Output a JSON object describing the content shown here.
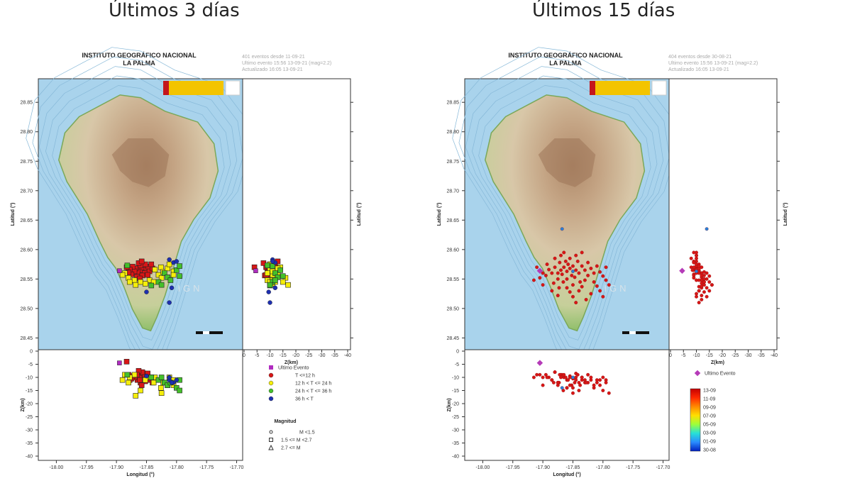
{
  "headings": [
    "Últimos 3 días",
    "Últimos 15 días"
  ],
  "colors": {
    "sea": "#a9d3ec",
    "land": "#c9c2a4",
    "red": "#d81616",
    "yellow": "#f5ee0a",
    "green": "#44c02a",
    "blue": "#1d2fb0",
    "magenta": "#b02cc0",
    "purple_diamond": "#b53ab8"
  },
  "panels": [
    {
      "institute": "INSTITUTO GEOGRÁFICO NACIONAL",
      "region": "LA PALMA",
      "info": [
        "401 eventos desde 11-09-21",
        "Ultimo evento 15:56 13-09-21 (mag=2.2)",
        "Actualizado 16:05 13-09-21"
      ],
      "watermark": "IGN"
    },
    {
      "institute": "INSTITUTO GEOGRÁFICO NACIONAL",
      "region": "LA PALMA",
      "info": [
        "404 eventos desde 30-08-21",
        "Ultimo evento 15:56 13-09-21 (mag=2.2)",
        "Actualizado 16:05 13-09-21"
      ],
      "watermark": "IGN"
    }
  ],
  "chart_data": [
    {
      "type": "scatter",
      "title": "Últimos 3 días",
      "map": {
        "xlabel": "Longitud (°)",
        "ylabel": "Latitud (°)",
        "xlim": [
          -18.03,
          -17.69
        ],
        "ylim": [
          28.43,
          28.89
        ],
        "xticks": [
          "-18.00",
          "-17.95",
          "-17.90",
          "-17.85",
          "-17.80",
          "-17.75",
          "-17.70"
        ],
        "yticks": [
          "28.85",
          "28.80",
          "28.75",
          "28.70",
          "28.65",
          "28.60",
          "28.55",
          "28.50",
          "28.45"
        ]
      },
      "depth_lat": {
        "xlabel": "Z(km)",
        "ylabel": "Latitud (°)",
        "xticks": [
          "0",
          "-5",
          "-10",
          "-15",
          "-20",
          "-25",
          "-30",
          "-35",
          "-40"
        ]
      },
      "lon_depth": {
        "ylabel": "Z(km)",
        "yticks": [
          "0",
          "-5",
          "-10",
          "-15",
          "-20",
          "-25",
          "-30",
          "-35",
          "-40"
        ]
      },
      "legend": {
        "items": [
          "Ultimo Evento",
          "T <=12 h",
          "12 h  < T <= 24 h",
          "24 h  < T <= 36 h",
          "36 h  < T"
        ],
        "magnitude_title": "Magnitud",
        "magnitude_items": [
          "M <1.5",
          "1.5 <= M <2.7",
          "2.7 <= M"
        ]
      },
      "series": [
        {
          "name": "T <=12 h",
          "color": "#d81616",
          "points": [
            [
              -17.862,
              28.568,
              -9.5
            ],
            [
              -17.858,
              28.565,
              -10
            ],
            [
              -17.855,
              28.57,
              -8.5
            ],
            [
              -17.865,
              28.562,
              -11
            ],
            [
              -17.85,
              28.566,
              -10.5
            ],
            [
              -17.868,
              28.568,
              -9
            ],
            [
              -17.86,
              28.573,
              -12
            ],
            [
              -17.853,
              28.56,
              -9
            ],
            [
              -17.87,
              28.563,
              -10
            ],
            [
              -17.847,
              28.571,
              -11
            ],
            [
              -17.857,
              28.556,
              -8
            ],
            [
              -17.873,
              28.571,
              -9.5
            ],
            [
              -17.845,
              28.563,
              -10
            ],
            [
              -17.863,
              28.577,
              -7.5
            ],
            [
              -17.852,
              28.575,
              -11.5
            ],
            [
              -17.875,
              28.558,
              -10.5
            ],
            [
              -17.84,
              28.568,
              -12
            ],
            [
              -17.866,
              28.554,
              -9
            ],
            [
              -17.878,
              28.566,
              -11
            ],
            [
              -17.848,
              28.557,
              -8.5
            ],
            [
              -17.858,
              28.58,
              -13
            ],
            [
              -17.842,
              28.575,
              -10
            ],
            [
              -17.88,
              28.561,
              -9
            ],
            [
              -17.861,
              28.551,
              -11
            ],
            [
              -17.883,
              28.57,
              -4
            ]
          ]
        },
        {
          "name": "12 h  < T <= 24 h",
          "color": "#f5ee0a",
          "points": [
            [
              -17.836,
              28.566,
              -10
            ],
            [
              -17.83,
              28.557,
              -11
            ],
            [
              -17.88,
              28.552,
              -12
            ],
            [
              -17.886,
              28.56,
              -9
            ],
            [
              -17.826,
              28.57,
              -14
            ],
            [
              -17.845,
              28.548,
              -10
            ],
            [
              -17.89,
              28.557,
              -11
            ],
            [
              -17.822,
              28.562,
              -12
            ],
            [
              -17.87,
              28.548,
              -9
            ],
            [
              -17.815,
              28.568,
              -13
            ],
            [
              -17.825,
              28.552,
              -16
            ],
            [
              -17.86,
              28.545,
              -15
            ],
            [
              -17.852,
              28.542,
              -11
            ],
            [
              -17.878,
              28.545,
              -10
            ],
            [
              -17.838,
              28.545,
              -12
            ],
            [
              -17.812,
              28.575,
              -10
            ],
            [
              -17.805,
              28.563,
              -11
            ],
            [
              -17.805,
              28.557,
              -13
            ],
            [
              -17.868,
              28.54,
              -17
            ]
          ]
        },
        {
          "name": "24 h  < T <= 36 h",
          "color": "#44c02a",
          "points": [
            [
              -17.82,
              28.56,
              -12
            ],
            [
              -17.815,
              28.553,
              -13
            ],
            [
              -17.83,
              28.545,
              -11
            ],
            [
              -17.8,
              28.565,
              -14
            ],
            [
              -17.795,
              28.555,
              -15
            ],
            [
              -17.81,
              28.548,
              -12
            ],
            [
              -17.882,
              28.573,
              -9
            ],
            [
              -17.842,
              28.539,
              -10
            ],
            [
              -17.795,
              28.572,
              -11
            ],
            [
              -17.825,
              28.54,
              -10
            ]
          ]
        },
        {
          "name": "36 h  < T",
          "color": "#1d2fb0",
          "points": [
            [
              -17.812,
              28.583,
              -11
            ],
            [
              -17.805,
              28.578,
              -12
            ],
            [
              -17.85,
              28.528,
              -9.5
            ],
            [
              -17.812,
              28.51,
              -10
            ],
            [
              -17.808,
              28.535,
              -12
            ],
            [
              -17.8,
              28.58,
              -11
            ]
          ]
        },
        {
          "name": "Ultimo Evento",
          "color": "#b02cc0",
          "points": [
            [
              -17.895,
              28.564,
              -4.5
            ]
          ]
        }
      ]
    },
    {
      "type": "scatter",
      "title": "Últimos 15 días",
      "map": {
        "xlabel": "Longitud (°)",
        "ylabel": "Latitud (°)",
        "xlim": [
          -18.03,
          -17.69
        ],
        "ylim": [
          28.43,
          28.89
        ],
        "xticks": [
          "-18.00",
          "-17.95",
          "-17.90",
          "-17.85",
          "-17.80",
          "-17.75",
          "-17.70"
        ],
        "yticks": [
          "28.85",
          "28.80",
          "28.75",
          "28.70",
          "28.65",
          "28.60",
          "28.55",
          "28.50",
          "28.45"
        ]
      },
      "depth_lat": {
        "xlabel": "Z(km)",
        "ylabel": "Latitud (°)",
        "xticks": [
          "0",
          "-5",
          "-10",
          "-15",
          "-20",
          "-25",
          "-30",
          "-35",
          "-40"
        ]
      },
      "lon_depth": {
        "ylabel": "Z(km)",
        "yticks": [
          "0",
          "-5",
          "-10",
          "-15",
          "-20",
          "-25",
          "-30",
          "-35",
          "-40"
        ]
      },
      "legend": {
        "items": [
          "Ultimo Evento"
        ]
      },
      "colorbar": {
        "labels": [
          "13-09",
          "11-09",
          "09-09",
          "07-09",
          "05-09",
          "03-09",
          "01-09",
          "30-08"
        ]
      },
      "series": [
        {
          "name": "events",
          "color": "#d81616",
          "points": [
            [
              -17.87,
              28.565,
              -9
            ],
            [
              -17.865,
              28.57,
              -10
            ],
            [
              -17.86,
              28.563,
              -11
            ],
            [
              -17.855,
              28.568,
              -9.5
            ],
            [
              -17.85,
              28.572,
              -10.5
            ],
            [
              -17.875,
              28.56,
              -12
            ],
            [
              -17.845,
              28.565,
              -8.5
            ],
            [
              -17.858,
              28.575,
              -11
            ],
            [
              -17.868,
              28.558,
              -9
            ],
            [
              -17.862,
              28.58,
              -10
            ],
            [
              -17.84,
              28.56,
              -12
            ],
            [
              -17.88,
              28.57,
              -8
            ],
            [
              -17.852,
              28.556,
              -13
            ],
            [
              -17.835,
              28.572,
              -10
            ],
            [
              -17.885,
              28.56,
              -11
            ],
            [
              -17.872,
              28.578,
              -9
            ],
            [
              -17.847,
              28.553,
              -12
            ],
            [
              -17.86,
              28.55,
              -14
            ],
            [
              -17.83,
              28.565,
              -11
            ],
            [
              -17.89,
              28.566,
              -10
            ],
            [
              -17.875,
              28.55,
              -13
            ],
            [
              -17.842,
              28.58,
              -9
            ],
            [
              -17.855,
              28.585,
              -10
            ],
            [
              -17.825,
              28.556,
              -12
            ],
            [
              -17.895,
              28.556,
              -9
            ],
            [
              -17.82,
              28.568,
              -11
            ],
            [
              -17.866,
              28.545,
              -15
            ],
            [
              -17.838,
              28.545,
              -13
            ],
            [
              -17.88,
              28.585,
              -8
            ],
            [
              -17.815,
              28.56,
              -14
            ],
            [
              -17.9,
              28.56,
              -10
            ],
            [
              -17.85,
              28.54,
              -16
            ],
            [
              -17.83,
              28.548,
              -12
            ],
            [
              -17.81,
              28.572,
              -11
            ],
            [
              -17.905,
              28.552,
              -9
            ],
            [
              -17.882,
              28.543,
              -12
            ],
            [
              -17.845,
              28.59,
              -10
            ],
            [
              -17.805,
              28.562,
              -13
            ],
            [
              -17.86,
              28.535,
              -14
            ],
            [
              -17.835,
              28.537,
              -11
            ],
            [
              -17.8,
              28.555,
              -15
            ],
            [
              -17.87,
              28.59,
              -10
            ],
            [
              -17.825,
              28.578,
              -9
            ],
            [
              -17.815,
              28.545,
              -13
            ],
            [
              -17.893,
              28.575,
              -10
            ],
            [
              -17.873,
              28.535,
              -12
            ],
            [
              -17.795,
              28.548,
              -11
            ],
            [
              -17.855,
              28.528,
              -13
            ],
            [
              -17.81,
              28.538,
              -12
            ],
            [
              -17.82,
              28.525,
              -10
            ],
            [
              -17.84,
              28.53,
              -15
            ],
            [
              -17.885,
              28.53,
              -11
            ],
            [
              -17.865,
              28.595,
              -9
            ],
            [
              -17.795,
              28.57,
              -12
            ],
            [
              -17.915,
              28.548,
              -10
            ],
            [
              -17.9,
              28.54,
              -13
            ],
            [
              -17.835,
              28.595,
              -10
            ],
            [
              -17.805,
              28.53,
              -11
            ],
            [
              -17.79,
              28.54,
              -16
            ],
            [
              -17.828,
              28.515,
              -12
            ],
            [
              -17.91,
              28.57,
              -9
            ],
            [
              -17.85,
              28.52,
              -14
            ],
            [
              -17.8,
              28.52,
              -10
            ],
            [
              -17.875,
              28.522,
              -12
            ],
            [
              -17.845,
              28.51,
              -11
            ]
          ]
        },
        {
          "name": "other",
          "color": "#2a7fd8",
          "points": [
            [
              -17.868,
              28.635,
              -14
            ],
            [
              -17.85,
              28.563,
              -10
            ]
          ]
        },
        {
          "name": "Ultimo Evento",
          "color": "#b53ab8",
          "points": [
            [
              -17.905,
              28.564,
              -4.5
            ]
          ]
        }
      ]
    }
  ]
}
